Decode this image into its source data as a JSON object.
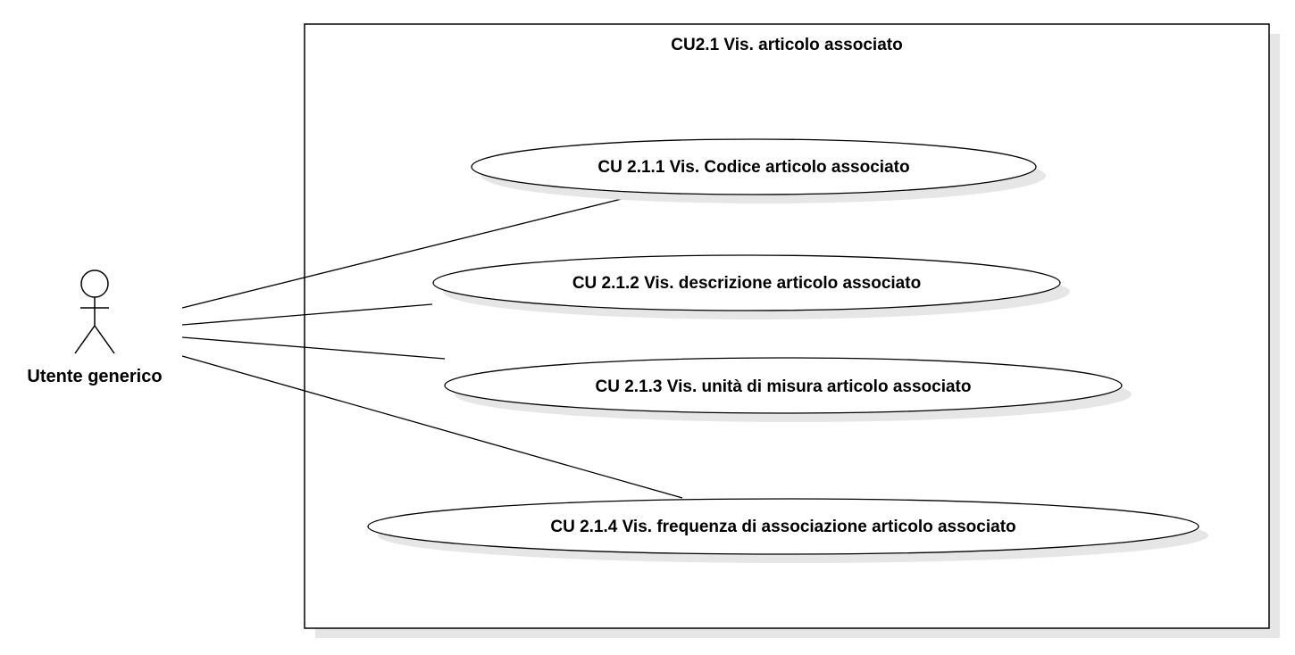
{
  "system": {
    "title": "CU2.1 Vis. articolo associato"
  },
  "actor": {
    "name": "Utente generico"
  },
  "use_cases": [
    {
      "label": "CU 2.1.1 Vis. Codice articolo associato"
    },
    {
      "label": "CU 2.1.2 Vis. descrizione articolo associato"
    },
    {
      "label": "CU 2.1.3 Vis. unità di misura articolo associato"
    },
    {
      "label": "CU 2.1.4 Vis. frequenza di associazione articolo associato"
    }
  ],
  "colors": {
    "stroke": "#000000",
    "shadow": "#e6e6e6",
    "fill": "#ffffff"
  }
}
